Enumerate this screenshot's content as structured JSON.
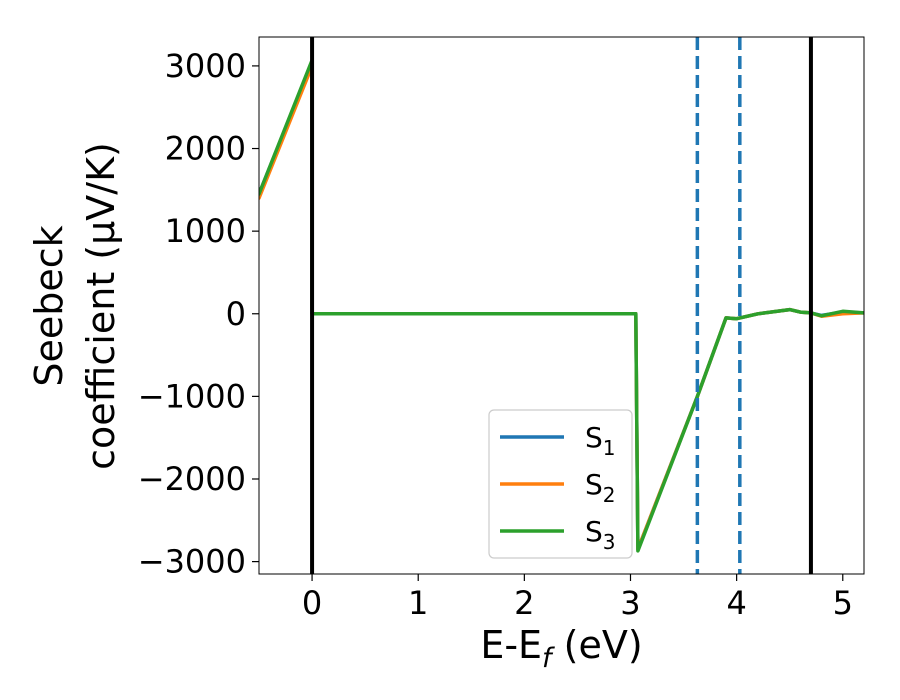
{
  "chart_data": {
    "type": "line",
    "xlabel": "E-E_f (eV)",
    "ylabel": "Seebeck coefficient (μV/K)",
    "xlabel_parts": {
      "base": "E-E",
      "sub": "f",
      "rest": " (eV)"
    },
    "ylabel_lines": [
      "Seebeck",
      "coefficient  (μV/K)"
    ],
    "xlim": [
      -0.5,
      5.2
    ],
    "ylim": [
      -3150,
      3350
    ],
    "xticks": [
      0,
      1,
      2,
      3,
      4,
      5
    ],
    "xtick_labels": [
      "0",
      "1",
      "2",
      "3",
      "4",
      "5"
    ],
    "yticks": [
      -3000,
      -2000,
      -1000,
      0,
      1000,
      2000,
      3000
    ],
    "ytick_labels": [
      "−3000",
      "−2000",
      "−1000",
      "0",
      "1000",
      "2000",
      "3000"
    ],
    "grid": false,
    "legend_position": "lower-center",
    "vlines": [
      {
        "x": 0,
        "style": "solid",
        "color": "#000000"
      },
      {
        "x": 4.7,
        "style": "solid",
        "color": "#000000"
      },
      {
        "x": 3.63,
        "style": "dashed",
        "color": "#1f77b4"
      },
      {
        "x": 4.03,
        "style": "dashed",
        "color": "#1f77b4"
      }
    ],
    "series": [
      {
        "name": "S1",
        "label_base": "S",
        "label_sub": "1",
        "color": "#1f77b4",
        "x": [
          -0.5,
          0.0,
          0.0,
          3.05,
          3.07,
          3.63,
          3.9,
          4.0,
          4.2,
          4.5,
          4.6,
          4.7,
          4.8,
          5.0,
          5.2
        ],
        "y": [
          1450,
          3050,
          0,
          0,
          -2850,
          -1000,
          -50,
          -60,
          0,
          50,
          20,
          10,
          -20,
          20,
          10
        ]
      },
      {
        "name": "S2",
        "label_base": "S",
        "label_sub": "2",
        "color": "#ff7f0e",
        "x": [
          -0.5,
          0.0,
          0.0,
          3.05,
          3.07,
          3.63,
          3.9,
          4.0,
          4.2,
          4.5,
          4.6,
          4.7,
          4.8,
          5.0,
          5.2
        ],
        "y": [
          1400,
          3000,
          0,
          0,
          -2850,
          -1000,
          -50,
          -60,
          0,
          50,
          20,
          10,
          -30,
          0,
          10
        ]
      },
      {
        "name": "S3",
        "label_base": "S",
        "label_sub": "3",
        "color": "#2ca02c",
        "x": [
          -0.5,
          0.0,
          0.0,
          3.05,
          3.07,
          3.63,
          3.9,
          4.0,
          4.2,
          4.5,
          4.6,
          4.7,
          4.8,
          5.0,
          5.2
        ],
        "y": [
          1450,
          3070,
          0,
          0,
          -2870,
          -1000,
          -50,
          -60,
          0,
          50,
          20,
          10,
          -25,
          30,
          10
        ]
      }
    ]
  }
}
